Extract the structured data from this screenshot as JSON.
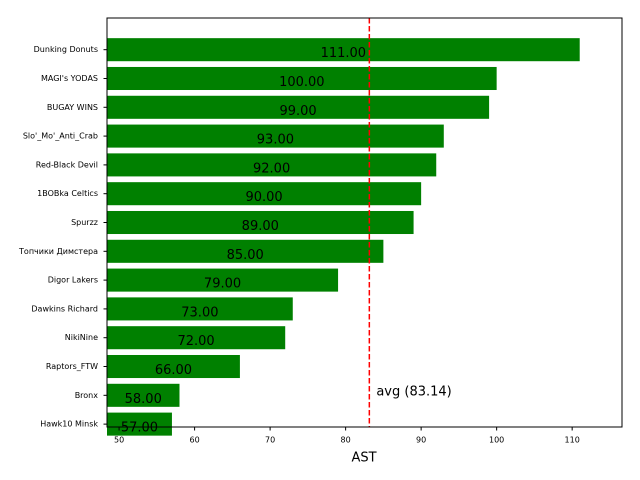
{
  "chart_data": {
    "type": "barh",
    "x_label": "AST",
    "categories": [
      "Dunking Donuts",
      "MAGI's YODAS",
      "BUGAY WINS",
      "Slo'_Mo'_Anti_Crab",
      "Red-Black Devil",
      "1BOBka Celtics",
      "Spurzz",
      "Топчики Димстера",
      "Digor Lakers",
      "Dawkins Richard",
      "NikiNine",
      "Raptors_FTW",
      "Bronx",
      "Hawk10 Minsk"
    ],
    "values": [
      111,
      100,
      99,
      93,
      92,
      90,
      89,
      85,
      79,
      73,
      72,
      66,
      58,
      57
    ],
    "value_labels": [
      "111.00",
      "100.00",
      "99.00",
      "93.00",
      "92.00",
      "90.00",
      "89.00",
      "85.00",
      "79.00",
      "73.00",
      "72.00",
      "66.00",
      "58.00",
      "57.00"
    ],
    "color": "#008000",
    "xlim": [
      48.4,
      116.6
    ],
    "xticks": [
      50,
      60,
      70,
      80,
      90,
      100,
      110
    ],
    "reference_line": {
      "value": 83.14,
      "label": "avg (83.14)",
      "color": "#ff0000"
    }
  }
}
